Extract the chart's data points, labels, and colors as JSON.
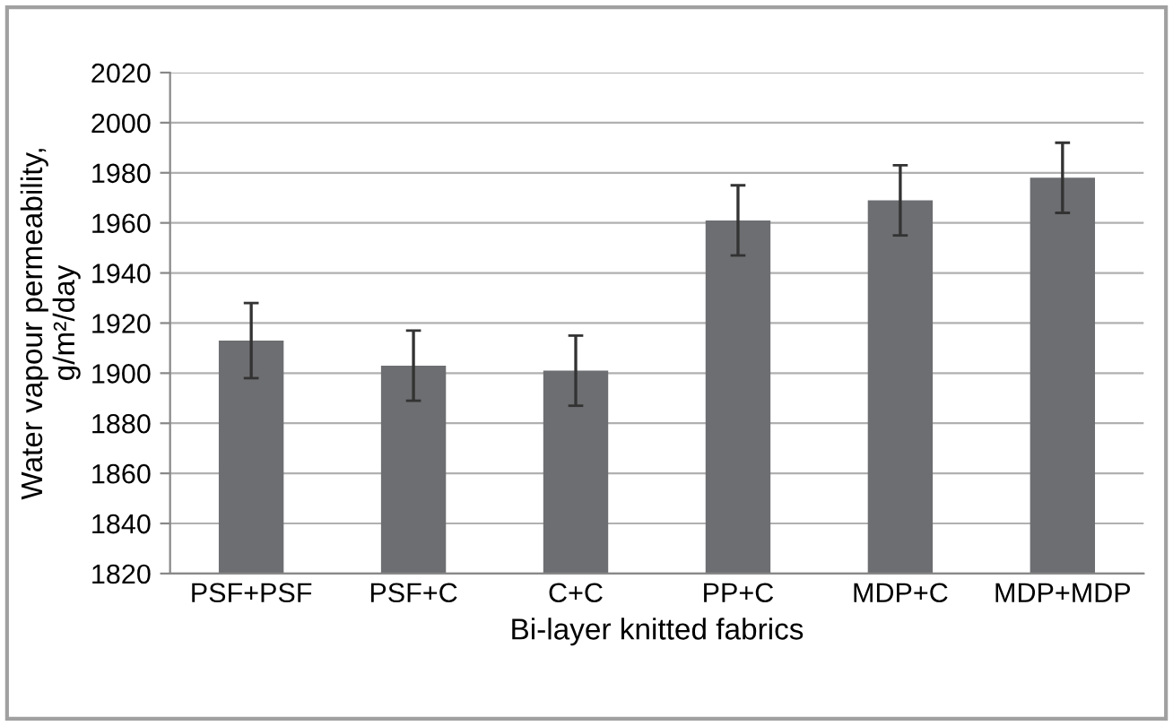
{
  "chart_data": {
    "type": "bar",
    "xlabel": "Bi-layer knitted fabrics",
    "ylabel": "Water vapour permeability,\ng/m²/day",
    "categories": [
      "PSF+PSF",
      "PSF+C",
      "C+C",
      "PP+C",
      "MDP+C",
      "MDP+MDP"
    ],
    "values": [
      1913,
      1903,
      1901,
      1961,
      1969,
      1978
    ],
    "errors": [
      15,
      14,
      14,
      14,
      14,
      14
    ],
    "color": "#6d6e71",
    "ylim": [
      1820,
      2020
    ],
    "yticks": [
      1820,
      1840,
      1860,
      1880,
      1900,
      1920,
      1940,
      1960,
      1980,
      2000,
      2020
    ],
    "grid": "y",
    "legend": false
  }
}
